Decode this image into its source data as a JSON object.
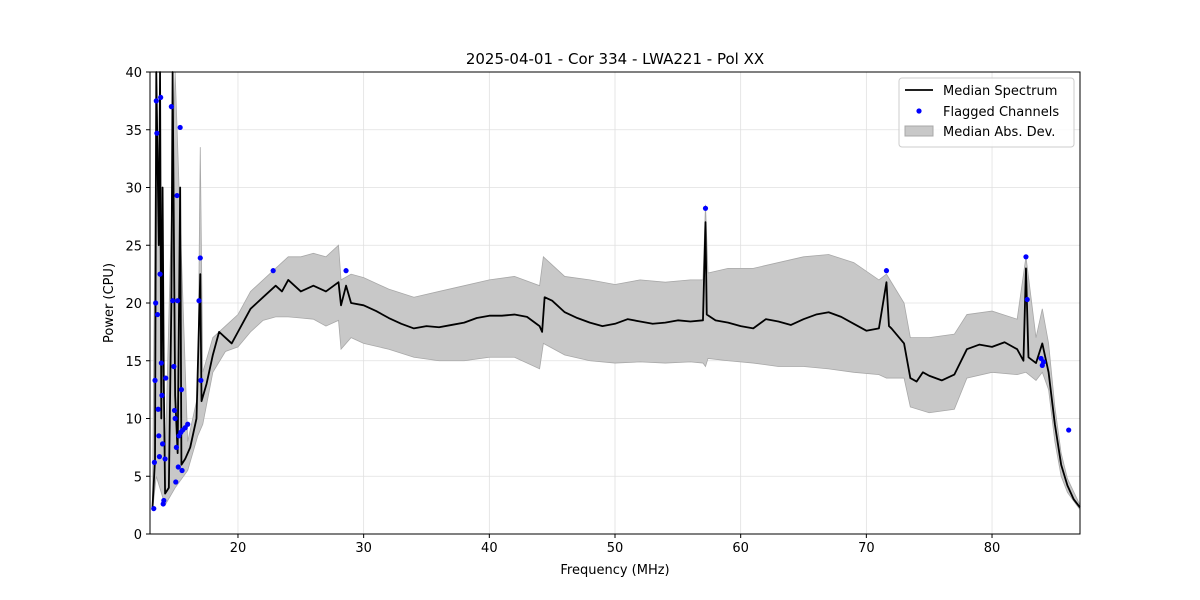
{
  "chart_data": {
    "type": "line",
    "title": "2025-04-01 - Cor 334 - LWA221 - Pol XX",
    "xlabel": "Frequency (MHz)",
    "ylabel": "Power (CPU)",
    "xlim": [
      13,
      87
    ],
    "ylim": [
      0,
      40
    ],
    "xticks": [
      20,
      30,
      40,
      50,
      60,
      70,
      80
    ],
    "yticks": [
      0,
      5,
      10,
      15,
      20,
      25,
      30,
      35,
      40
    ],
    "grid": true,
    "legend_position": "top-right",
    "legend": [
      {
        "label": "Median Spectrum",
        "kind": "line",
        "color": "#000000"
      },
      {
        "label": "Flagged Channels",
        "kind": "marker",
        "color": "#0000ff"
      },
      {
        "label": "Median Abs. Dev.",
        "kind": "band",
        "color": "#c8c8c8"
      }
    ],
    "series": [
      {
        "name": "Median Spectrum",
        "color": "#000000",
        "points": [
          [
            13.2,
            2.3
          ],
          [
            13.4,
            6.5
          ],
          [
            13.5,
            40
          ],
          [
            13.7,
            25
          ],
          [
            13.8,
            40
          ],
          [
            13.9,
            10
          ],
          [
            14.0,
            30
          ],
          [
            14.1,
            13
          ],
          [
            14.2,
            3.5
          ],
          [
            14.5,
            4
          ],
          [
            14.7,
            20
          ],
          [
            14.8,
            40
          ],
          [
            15.0,
            12
          ],
          [
            15.2,
            7
          ],
          [
            15.4,
            30
          ],
          [
            15.5,
            6
          ],
          [
            15.8,
            6.5
          ],
          [
            16.2,
            7.5
          ],
          [
            16.7,
            10
          ],
          [
            17.0,
            22.5
          ],
          [
            17.1,
            11.5
          ],
          [
            17.5,
            13
          ],
          [
            18.0,
            15.5
          ],
          [
            18.5,
            17.5
          ],
          [
            19.0,
            17
          ],
          [
            19.5,
            16.5
          ],
          [
            20.0,
            17.5
          ],
          [
            20.5,
            18.5
          ],
          [
            21.0,
            19.5
          ],
          [
            21.5,
            20
          ],
          [
            22.0,
            20.5
          ],
          [
            22.5,
            21
          ],
          [
            23.0,
            21.5
          ],
          [
            23.5,
            21
          ],
          [
            24.0,
            22
          ],
          [
            24.5,
            21.5
          ],
          [
            25.0,
            21
          ],
          [
            26.0,
            21.5
          ],
          [
            27.0,
            21
          ],
          [
            28.0,
            21.8
          ],
          [
            28.2,
            19.8
          ],
          [
            28.6,
            21.5
          ],
          [
            29.0,
            20
          ],
          [
            30.0,
            19.8
          ],
          [
            31.0,
            19.3
          ],
          [
            32.0,
            18.7
          ],
          [
            33.0,
            18.2
          ],
          [
            34.0,
            17.8
          ],
          [
            35.0,
            18
          ],
          [
            36.0,
            17.9
          ],
          [
            37.0,
            18.1
          ],
          [
            38.0,
            18.3
          ],
          [
            39.0,
            18.7
          ],
          [
            40.0,
            18.9
          ],
          [
            41.0,
            18.9
          ],
          [
            42.0,
            19
          ],
          [
            43.0,
            18.8
          ],
          [
            44.0,
            18
          ],
          [
            44.2,
            17.5
          ],
          [
            44.4,
            20.5
          ],
          [
            45.0,
            20.2
          ],
          [
            46.0,
            19.2
          ],
          [
            47.0,
            18.7
          ],
          [
            48.0,
            18.3
          ],
          [
            49.0,
            18
          ],
          [
            50.0,
            18.2
          ],
          [
            51.0,
            18.6
          ],
          [
            52.0,
            18.4
          ],
          [
            53.0,
            18.2
          ],
          [
            54.0,
            18.3
          ],
          [
            55.0,
            18.5
          ],
          [
            56.0,
            18.4
          ],
          [
            57.0,
            18.5
          ],
          [
            57.2,
            27
          ],
          [
            57.3,
            19
          ],
          [
            58.0,
            18.5
          ],
          [
            59.0,
            18.3
          ],
          [
            60.0,
            18
          ],
          [
            61.0,
            17.8
          ],
          [
            62.0,
            18.6
          ],
          [
            63.0,
            18.4
          ],
          [
            64.0,
            18.1
          ],
          [
            65.0,
            18.6
          ],
          [
            66.0,
            19
          ],
          [
            67.0,
            19.2
          ],
          [
            68.0,
            18.8
          ],
          [
            69.0,
            18.2
          ],
          [
            70.0,
            17.6
          ],
          [
            71.0,
            17.8
          ],
          [
            71.6,
            21.8
          ],
          [
            71.8,
            18
          ],
          [
            72.0,
            17.8
          ],
          [
            73.0,
            16.5
          ],
          [
            73.5,
            13.5
          ],
          [
            74.0,
            13.2
          ],
          [
            74.5,
            14
          ],
          [
            75.0,
            13.7
          ],
          [
            76.0,
            13.3
          ],
          [
            77.0,
            13.8
          ],
          [
            78.0,
            16
          ],
          [
            79.0,
            16.4
          ],
          [
            80.0,
            16.2
          ],
          [
            81.0,
            16.6
          ],
          [
            82.0,
            16
          ],
          [
            82.5,
            15
          ],
          [
            82.7,
            23
          ],
          [
            82.9,
            15.3
          ],
          [
            83.5,
            14.8
          ],
          [
            84.0,
            16.5
          ],
          [
            84.5,
            14
          ],
          [
            85.0,
            9.5
          ],
          [
            85.5,
            6
          ],
          [
            86.0,
            4.2
          ],
          [
            86.5,
            3
          ],
          [
            87.0,
            2.3
          ]
        ]
      }
    ],
    "band": {
      "name": "Median Abs. Dev.",
      "color": "#c8c8c8",
      "upper": [
        [
          13.2,
          3
        ],
        [
          13.5,
          40
        ],
        [
          14.2,
          6
        ],
        [
          15.0,
          40
        ],
        [
          16.0,
          8
        ],
        [
          16.8,
          12
        ],
        [
          17.0,
          33.5
        ],
        [
          17.2,
          14
        ],
        [
          18.0,
          17
        ],
        [
          19.0,
          18
        ],
        [
          20.0,
          19
        ],
        [
          21.0,
          21
        ],
        [
          22.0,
          22
        ],
        [
          23.0,
          23
        ],
        [
          24.0,
          24
        ],
        [
          25.0,
          24
        ],
        [
          26.0,
          24.3
        ],
        [
          27.0,
          24
        ],
        [
          28.0,
          25
        ],
        [
          28.2,
          22
        ],
        [
          29.0,
          22.5
        ],
        [
          30.0,
          22.2
        ],
        [
          32.0,
          21.2
        ],
        [
          34.0,
          20.5
        ],
        [
          36.0,
          21
        ],
        [
          38.0,
          21.5
        ],
        [
          40.0,
          22
        ],
        [
          42.0,
          22.3
        ],
        [
          44.0,
          21.5
        ],
        [
          44.3,
          24
        ],
        [
          46.0,
          22.3
        ],
        [
          48.0,
          22
        ],
        [
          50.0,
          21.6
        ],
        [
          52.0,
          22
        ],
        [
          54.0,
          21.8
        ],
        [
          56.0,
          22
        ],
        [
          57.0,
          22
        ],
        [
          57.2,
          28.5
        ],
        [
          57.4,
          22.6
        ],
        [
          59.0,
          23
        ],
        [
          61.0,
          23
        ],
        [
          63.0,
          23.5
        ],
        [
          65.0,
          24
        ],
        [
          67.0,
          24.2
        ],
        [
          69.0,
          23.5
        ],
        [
          71.0,
          22
        ],
        [
          71.6,
          22.5
        ],
        [
          73.0,
          20
        ],
        [
          73.5,
          17
        ],
        [
          75.0,
          17
        ],
        [
          77.0,
          17.3
        ],
        [
          78.0,
          19
        ],
        [
          80.0,
          19.3
        ],
        [
          82.0,
          18.6
        ],
        [
          82.7,
          24
        ],
        [
          83.5,
          17
        ],
        [
          84.0,
          19.5
        ],
        [
          84.5,
          16.5
        ],
        [
          85.0,
          11
        ],
        [
          85.5,
          7
        ],
        [
          86.0,
          4.8
        ],
        [
          87.0,
          2.5
        ]
      ],
      "lower": [
        [
          13.2,
          2
        ],
        [
          13.5,
          5
        ],
        [
          14.2,
          2.5
        ],
        [
          15.0,
          4
        ],
        [
          16.0,
          5.5
        ],
        [
          16.8,
          8.5
        ],
        [
          17.2,
          9.5
        ],
        [
          18.0,
          14
        ],
        [
          19.0,
          15.8
        ],
        [
          20.0,
          16.2
        ],
        [
          21.0,
          17.5
        ],
        [
          22.0,
          18.5
        ],
        [
          23.0,
          18.8
        ],
        [
          24.0,
          18.8
        ],
        [
          25.0,
          18.7
        ],
        [
          26.0,
          18.6
        ],
        [
          27.0,
          18
        ],
        [
          28.0,
          18.5
        ],
        [
          28.2,
          16
        ],
        [
          29.0,
          17
        ],
        [
          30.0,
          16.5
        ],
        [
          32.0,
          16
        ],
        [
          34.0,
          15.3
        ],
        [
          36.0,
          15
        ],
        [
          38.0,
          15
        ],
        [
          40.0,
          15.3
        ],
        [
          42.0,
          15.3
        ],
        [
          44.0,
          14.3
        ],
        [
          44.3,
          16.5
        ],
        [
          46.0,
          15.5
        ],
        [
          48.0,
          15
        ],
        [
          50.0,
          14.8
        ],
        [
          52.0,
          14.9
        ],
        [
          54.0,
          14.8
        ],
        [
          56.0,
          14.9
        ],
        [
          57.0,
          14.8
        ],
        [
          57.2,
          14.5
        ],
        [
          57.4,
          15.2
        ],
        [
          59.0,
          15
        ],
        [
          61.0,
          14.8
        ],
        [
          63.0,
          14.5
        ],
        [
          65.0,
          14.5
        ],
        [
          67.0,
          14.3
        ],
        [
          69.0,
          14
        ],
        [
          71.0,
          13.8
        ],
        [
          71.6,
          13.5
        ],
        [
          73.0,
          13.5
        ],
        [
          73.5,
          11
        ],
        [
          75.0,
          10.5
        ],
        [
          77.0,
          10.8
        ],
        [
          78.0,
          13.5
        ],
        [
          80.0,
          14
        ],
        [
          82.0,
          13.8
        ],
        [
          82.7,
          14
        ],
        [
          83.5,
          13.3
        ],
        [
          84.0,
          14
        ],
        [
          84.5,
          12.5
        ],
        [
          85.0,
          8
        ],
        [
          85.5,
          5
        ],
        [
          86.0,
          3.6
        ],
        [
          87.0,
          2.1
        ]
      ]
    },
    "flagged_channels": {
      "name": "Flagged Channels",
      "color": "#0000ff",
      "points": [
        [
          13.3,
          2.2
        ],
        [
          13.35,
          6.2
        ],
        [
          13.4,
          13.3
        ],
        [
          13.45,
          20
        ],
        [
          13.5,
          37.5
        ],
        [
          13.55,
          34.7
        ],
        [
          13.6,
          19
        ],
        [
          13.65,
          10.8
        ],
        [
          13.7,
          8.5
        ],
        [
          13.75,
          6.7
        ],
        [
          13.8,
          22.5
        ],
        [
          13.85,
          37.8
        ],
        [
          13.9,
          14.8
        ],
        [
          13.95,
          12
        ],
        [
          14.0,
          7.8
        ],
        [
          14.05,
          2.6
        ],
        [
          14.1,
          2.9
        ],
        [
          14.2,
          6.5
        ],
        [
          14.25,
          13.5
        ],
        [
          14.7,
          37
        ],
        [
          14.8,
          20.2
        ],
        [
          14.9,
          14.5
        ],
        [
          14.95,
          10.7
        ],
        [
          15.0,
          10
        ],
        [
          15.05,
          4.5
        ],
        [
          15.1,
          7.5
        ],
        [
          15.15,
          29.3
        ],
        [
          15.2,
          20.2
        ],
        [
          15.25,
          5.8
        ],
        [
          15.3,
          8.5
        ],
        [
          15.4,
          35.2
        ],
        [
          15.45,
          8.8
        ],
        [
          15.5,
          12.5
        ],
        [
          15.55,
          5.5
        ],
        [
          15.6,
          9
        ],
        [
          15.8,
          9.2
        ],
        [
          16.0,
          9.5
        ],
        [
          16.9,
          20.2
        ],
        [
          17.0,
          23.9
        ],
        [
          17.05,
          13.3
        ],
        [
          22.8,
          22.8
        ],
        [
          28.6,
          22.8
        ],
        [
          57.2,
          28.2
        ],
        [
          71.6,
          22.8
        ],
        [
          82.7,
          24
        ],
        [
          82.8,
          20.3
        ],
        [
          83.9,
          15.2
        ],
        [
          84.0,
          14.6
        ],
        [
          84.1,
          14.9
        ],
        [
          86.1,
          9
        ]
      ]
    }
  }
}
